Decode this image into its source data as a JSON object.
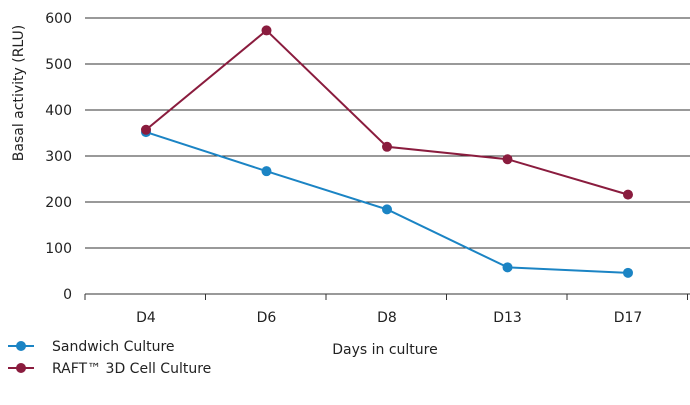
{
  "chart_data": {
    "type": "line",
    "title": "",
    "xlabel": "Days in culture",
    "ylabel": "Basal activity (RLU)",
    "categories": [
      "D4",
      "D6",
      "D8",
      "D13",
      "D17"
    ],
    "ylim": [
      0,
      600
    ],
    "yticks": [
      "0",
      "100",
      "200",
      "300",
      "400",
      "500",
      "600"
    ],
    "grid": true,
    "legend_position": "bottom-left",
    "series": [
      {
        "name": "Sandwich Culture",
        "color": "#1b84c4",
        "values": [
          352,
          267,
          184,
          58,
          46
        ]
      },
      {
        "name": "RAFT™ 3D Cell Culture",
        "color": "#8a1c3e",
        "values": [
          357,
          573,
          320,
          293,
          216
        ]
      }
    ]
  }
}
